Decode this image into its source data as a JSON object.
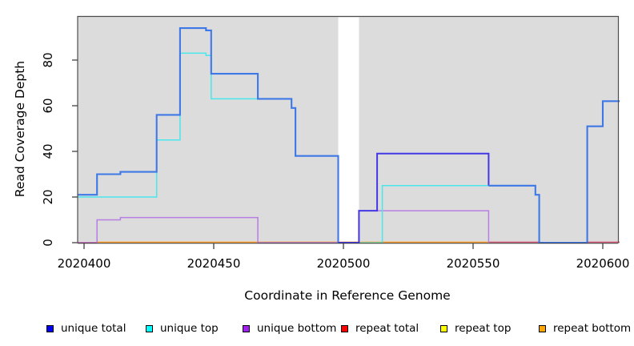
{
  "title": "",
  "y_axis": {
    "label": "Read Coverage Depth",
    "ticks": [
      "0",
      "20",
      "40",
      "60",
      "80"
    ]
  },
  "x_axis": {
    "label": "Coordinate in Reference Genome",
    "ticks": [
      "2020400",
      "2020450",
      "2020500",
      "2020550",
      "2020600"
    ]
  },
  "legend": [
    {
      "label": "unique total",
      "color": "#0000EE"
    },
    {
      "label": "unique top",
      "color": "#00FFFF"
    },
    {
      "label": "unique bottom",
      "color": "#A020F0"
    },
    {
      "label": "repeat total",
      "color": "#FF0000"
    },
    {
      "label": "repeat top",
      "color": "#FFFF00"
    },
    {
      "label": "repeat bottom",
      "color": "#FFA500"
    }
  ],
  "chart_data": {
    "type": "line",
    "step": true,
    "title": "",
    "xlabel": "Coordinate in Reference Genome",
    "ylabel": "Read Coverage Depth",
    "xlim": [
      2020397.5,
      2020606.5
    ],
    "ylim": [
      0,
      99.5
    ],
    "x_ticks": [
      2020400,
      2020450,
      2020500,
      2020550,
      2020600
    ],
    "y_ticks": [
      0,
      20,
      40,
      60,
      80
    ],
    "grid": false,
    "legend_position": "bottom",
    "plot_background": "#DCDCDC",
    "no_data_region": [
      2020498,
      2020506
    ],
    "series": [
      {
        "name": "unique total",
        "color": "#0000EE",
        "points": [
          [
            2020397.5,
            21
          ],
          [
            2020405,
            30
          ],
          [
            2020414,
            31
          ],
          [
            2020428,
            56
          ],
          [
            2020437,
            94
          ],
          [
            2020447,
            93
          ],
          [
            2020449,
            74
          ],
          [
            2020467,
            63
          ],
          [
            2020480,
            59
          ],
          [
            2020481.5,
            38
          ],
          [
            2020498,
            0
          ],
          [
            2020506,
            14
          ],
          [
            2020513,
            39
          ],
          [
            2020556,
            25
          ],
          [
            2020574,
            21
          ],
          [
            2020575.5,
            0
          ],
          [
            2020594,
            51
          ],
          [
            2020600,
            62
          ],
          [
            2020606.5,
            62
          ]
        ]
      },
      {
        "name": "unique top",
        "color": "#00FFFF",
        "points": [
          [
            2020397.5,
            20
          ],
          [
            2020428,
            45
          ],
          [
            2020437,
            83
          ],
          [
            2020447,
            82
          ],
          [
            2020449,
            63
          ],
          [
            2020480,
            59
          ],
          [
            2020481.5,
            38
          ],
          [
            2020498,
            0
          ],
          [
            2020515,
            25
          ],
          [
            2020574,
            21
          ],
          [
            2020575.5,
            0
          ]
        ]
      },
      {
        "name": "unique bottom",
        "color": "#A020F0",
        "points": [
          [
            2020397.5,
            0
          ],
          [
            2020405,
            10
          ],
          [
            2020414,
            11
          ],
          [
            2020467,
            0
          ],
          [
            2020506,
            14
          ],
          [
            2020556,
            0
          ]
        ]
      },
      {
        "name": "repeat total",
        "color": "#FF0000",
        "points": [
          [
            2020397.5,
            0
          ],
          [
            2020606.5,
            0
          ]
        ]
      },
      {
        "name": "repeat top",
        "color": "#FFFF00",
        "points": [
          [
            2020397.5,
            0
          ],
          [
            2020606.5,
            0
          ]
        ]
      },
      {
        "name": "repeat bottom",
        "color": "#FFA500",
        "points": [
          [
            2020397.5,
            0
          ],
          [
            2020606.5,
            0
          ]
        ]
      }
    ]
  },
  "render": {
    "plot_bg": "#DCDCDC",
    "border_color": "#4D4D4D",
    "axis_color": "#333333",
    "text_color": "#000000",
    "zero_segments": [
      {
        "from": 2020404.6,
        "to": 2020556.2,
        "color": "#FF9D2B"
      },
      {
        "from": 2020556.2,
        "to": 2020575.3,
        "color": "#D65C78"
      },
      {
        "from": 2020594.2,
        "to": 2020606.5,
        "color": "#D65C78"
      }
    ],
    "strokes": [
      {
        "name": "unique-bottom-line",
        "color": "#B77EE3",
        "width": 1.5,
        "points": [
          [
            2020397.5,
            0
          ],
          [
            2020405,
            10
          ],
          [
            2020414,
            11
          ],
          [
            2020467,
            0
          ],
          [
            2020506,
            14
          ],
          [
            2020556,
            0
          ]
        ]
      },
      {
        "name": "unique-top-line",
        "color": "#49E6EC",
        "width": 1.5,
        "points": [
          [
            2020397.5,
            20
          ],
          [
            2020428,
            45
          ],
          [
            2020437,
            83
          ],
          [
            2020447,
            82
          ],
          [
            2020449,
            63
          ],
          [
            2020480,
            59
          ],
          [
            2020481.5,
            38
          ],
          [
            2020498,
            0
          ],
          [
            2020515,
            25
          ],
          [
            2020574,
            21
          ],
          [
            2020575.5,
            0
          ]
        ]
      },
      {
        "name": "zero-overlay-magenta",
        "color": "#C767B2",
        "width": 1.5,
        "points": [
          [
            2020397.5,
            0
          ],
          [
            2020404.6,
            0
          ]
        ]
      },
      {
        "name": "zero-overlay-green",
        "color": "#8FE0A4",
        "width": 1.5,
        "points": [
          [
            2020505.9,
            0
          ],
          [
            2020514.8,
            0
          ]
        ]
      },
      {
        "name": "unique-total-left",
        "color": "#3E78E6",
        "width": 2.1,
        "points": [
          [
            2020397.5,
            21
          ],
          [
            2020405,
            30
          ],
          [
            2020414,
            31
          ],
          [
            2020428,
            56
          ],
          [
            2020437,
            94
          ],
          [
            2020447,
            93
          ],
          [
            2020449,
            74
          ],
          [
            2020467,
            63
          ],
          [
            2020480,
            59
          ],
          [
            2020481.5,
            38
          ],
          [
            2020498,
            0
          ]
        ]
      },
      {
        "name": "unique-total-mid",
        "color": "#4438E6",
        "width": 2.0,
        "points": [
          [
            2020498,
            0
          ],
          [
            2020506,
            14
          ],
          [
            2020513,
            39
          ],
          [
            2020556,
            25
          ]
        ]
      },
      {
        "name": "unique-total-right",
        "color": "#3E78E6",
        "width": 2.1,
        "points": [
          [
            2020556,
            25
          ],
          [
            2020574,
            21
          ],
          [
            2020575.5,
            0
          ],
          [
            2020594,
            51
          ],
          [
            2020600,
            62
          ],
          [
            2020606.5,
            62
          ]
        ]
      }
    ]
  }
}
